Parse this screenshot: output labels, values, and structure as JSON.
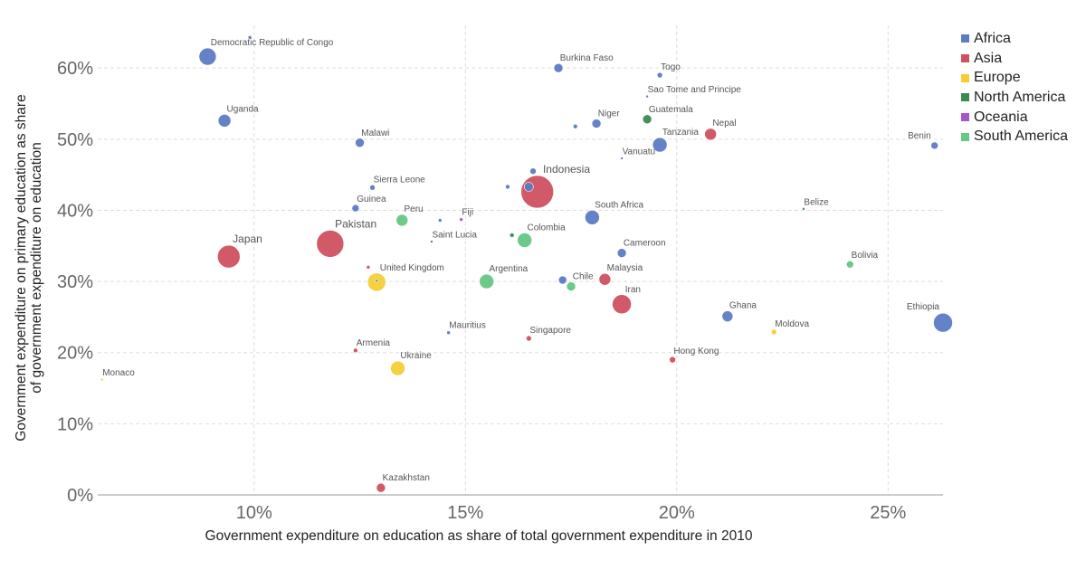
{
  "chart_data": {
    "type": "scatter",
    "title": "",
    "xlabel": "Government expenditure on education as share of total government expenditure in 2010",
    "ylabel": "Government expenditure on primary education as share of government expenditure on education",
    "xlim": [
      6.3,
      26.3
    ],
    "ylim": [
      0,
      66
    ],
    "x_ticks": [
      10,
      15,
      20,
      25
    ],
    "x_tick_labels": [
      "10%",
      "15%",
      "20%",
      "25%"
    ],
    "y_ticks": [
      0,
      10,
      20,
      30,
      40,
      50,
      60
    ],
    "y_tick_labels": [
      "0%",
      "10%",
      "20%",
      "30%",
      "40%",
      "50%",
      "60%"
    ],
    "grid": true,
    "legend_position": "top-right",
    "colors": {
      "Africa": "#5b7bc4",
      "Asia": "#d0505f",
      "Europe": "#f5cd37",
      "North America": "#3a8a4e",
      "Oceania": "#a855c8",
      "South America": "#64c783"
    },
    "legend": [
      "Africa",
      "Asia",
      "Europe",
      "North America",
      "Oceania",
      "South America"
    ],
    "points": [
      {
        "label": "Democratic Republic of Congo",
        "x": 8.9,
        "y": 61.6,
        "r": 9.5,
        "group": "Africa"
      },
      {
        "label": "",
        "x": 9.9,
        "y": 64.3,
        "r": 2,
        "group": "Africa"
      },
      {
        "label": "Uganda",
        "x": 9.3,
        "y": 52.6,
        "r": 7,
        "group": "Africa"
      },
      {
        "label": "Malawi",
        "x": 12.5,
        "y": 49.5,
        "r": 5,
        "group": "Africa"
      },
      {
        "label": "Sierra Leone",
        "x": 12.8,
        "y": 43.2,
        "r": 3,
        "group": "Africa"
      },
      {
        "label": "Guinea",
        "x": 12.4,
        "y": 40.3,
        "r": 4,
        "group": "Africa"
      },
      {
        "label": "Mauritius",
        "x": 14.6,
        "y": 22.8,
        "r": 2,
        "group": "Africa"
      },
      {
        "label": "",
        "x": 14.4,
        "y": 38.6,
        "r": 2,
        "group": "Africa"
      },
      {
        "label": "Burkina Faso",
        "x": 17.2,
        "y": 60.0,
        "r": 5,
        "group": "Africa"
      },
      {
        "label": "Togo",
        "x": 19.6,
        "y": 59.0,
        "r": 3,
        "group": "Africa"
      },
      {
        "label": "Sao Tome and Principe",
        "x": 19.3,
        "y": 56.0,
        "r": 1.5,
        "group": "Africa"
      },
      {
        "label": "Niger",
        "x": 18.1,
        "y": 52.2,
        "r": 5,
        "group": "Africa"
      },
      {
        "label": "",
        "x": 17.6,
        "y": 51.8,
        "r": 2.5,
        "group": "Africa"
      },
      {
        "label": "Tanzania",
        "x": 19.6,
        "y": 49.2,
        "r": 8,
        "group": "Africa"
      },
      {
        "label": "",
        "x": 16.6,
        "y": 45.5,
        "r": 3.5,
        "group": "Africa"
      },
      {
        "label": "",
        "x": 16.0,
        "y": 43.3,
        "r": 2.5,
        "group": "Africa"
      },
      {
        "label": "",
        "x": 16.5,
        "y": 43.3,
        "r": 5,
        "group": "Africa"
      },
      {
        "label": "South Africa",
        "x": 18.0,
        "y": 39.0,
        "r": 8,
        "group": "Africa"
      },
      {
        "label": "Cameroon",
        "x": 18.7,
        "y": 34.0,
        "r": 5,
        "group": "Africa"
      },
      {
        "label": "",
        "x": 17.3,
        "y": 30.2,
        "r": 4.5,
        "group": "Africa"
      },
      {
        "label": "Ghana",
        "x": 21.2,
        "y": 25.1,
        "r": 6,
        "group": "Africa"
      },
      {
        "label": "Benin",
        "x": 26.1,
        "y": 49.1,
        "r": 4,
        "group": "Africa"
      },
      {
        "label": "Ethiopia",
        "x": 26.3,
        "y": 24.2,
        "r": 10.5,
        "group": "Africa"
      },
      {
        "label": "Japan",
        "x": 9.4,
        "y": 33.5,
        "r": 12.5,
        "group": "Asia"
      },
      {
        "label": "Pakistan",
        "x": 11.8,
        "y": 35.3,
        "r": 15,
        "group": "Asia"
      },
      {
        "label": "",
        "x": 12.7,
        "y": 32.0,
        "r": 2,
        "group": "Asia"
      },
      {
        "label": "Armenia",
        "x": 12.4,
        "y": 20.3,
        "r": 2.5,
        "group": "Asia"
      },
      {
        "label": "Kazakhstan",
        "x": 13.0,
        "y": 1.0,
        "r": 5,
        "group": "Asia"
      },
      {
        "label": "Indonesia",
        "x": 16.7,
        "y": 42.6,
        "r": 18,
        "group": "Asia"
      },
      {
        "label": "Singapore",
        "x": 16.5,
        "y": 22.0,
        "r": 3,
        "group": "Asia"
      },
      {
        "label": "Malaysia",
        "x": 18.3,
        "y": 30.3,
        "r": 6.5,
        "group": "Asia"
      },
      {
        "label": "Iran",
        "x": 18.7,
        "y": 26.8,
        "r": 10.5,
        "group": "Asia"
      },
      {
        "label": "Nepal",
        "x": 20.8,
        "y": 50.7,
        "r": 6.5,
        "group": "Asia"
      },
      {
        "label": "Hong Kong",
        "x": 19.9,
        "y": 19.0,
        "r": 3.5,
        "group": "Asia"
      },
      {
        "label": "United Kingdom",
        "x": 12.9,
        "y": 29.9,
        "r": 10,
        "group": "Europe"
      },
      {
        "label": "Ukraine",
        "x": 13.4,
        "y": 17.8,
        "r": 8,
        "group": "Europe"
      },
      {
        "label": "Monaco",
        "x": 6.4,
        "y": 16.2,
        "r": 1.5,
        "group": "Europe"
      },
      {
        "label": "Moldova",
        "x": 22.3,
        "y": 22.9,
        "r": 3,
        "group": "Europe"
      },
      {
        "label": "Saint Lucia",
        "x": 14.2,
        "y": 35.6,
        "r": 1.5,
        "group": "North America"
      },
      {
        "label": "",
        "x": 16.1,
        "y": 36.5,
        "r": 2.5,
        "group": "North America"
      },
      {
        "label": "Guatemala",
        "x": 19.3,
        "y": 52.8,
        "r": 5,
        "group": "North America"
      },
      {
        "label": "Belize",
        "x": 23.0,
        "y": 40.2,
        "r": 1.5,
        "group": "North America"
      },
      {
        "label": "",
        "x": 12.9,
        "y": 30.1,
        "r": 1.5,
        "group": "North America"
      },
      {
        "label": "Fiji",
        "x": 14.9,
        "y": 38.7,
        "r": 2,
        "group": "Oceania"
      },
      {
        "label": "Vanuatu",
        "x": 18.7,
        "y": 47.3,
        "r": 1.5,
        "group": "Oceania"
      },
      {
        "label": "Peru",
        "x": 13.5,
        "y": 38.6,
        "r": 6.5,
        "group": "South America"
      },
      {
        "label": "Colombia",
        "x": 16.4,
        "y": 35.8,
        "r": 8,
        "group": "South America"
      },
      {
        "label": "Argentina",
        "x": 15.5,
        "y": 30.0,
        "r": 8,
        "group": "South America"
      },
      {
        "label": "Chile",
        "x": 17.5,
        "y": 29.3,
        "r": 5,
        "group": "South America"
      },
      {
        "label": "Bolivia",
        "x": 24.1,
        "y": 32.4,
        "r": 4,
        "group": "South America"
      }
    ]
  }
}
